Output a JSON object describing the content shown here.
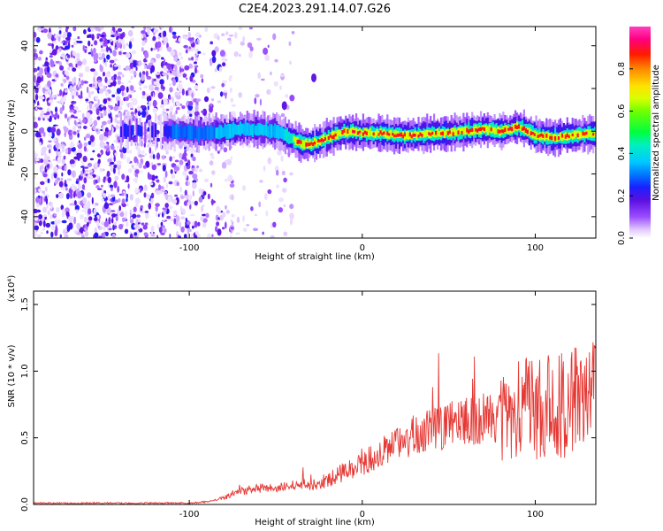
{
  "title": "C2E4.2023.291.14.07.G26",
  "chart_data": [
    {
      "type": "heatmap",
      "xlabel": "Height of straight line (km)",
      "ylabel": "Frequency (Hz)",
      "xlim": [
        -190,
        135
      ],
      "ylim": [
        -50,
        49
      ],
      "x_ticks": [
        -100,
        0,
        100
      ],
      "x_tick_labels": [
        "-100",
        "0",
        "100"
      ],
      "y_ticks": [
        -40,
        -20,
        0,
        20,
        40
      ],
      "y_tick_labels": [
        "-40",
        "-20",
        "0",
        "20",
        "40"
      ],
      "colorbar": {
        "label": "Normalized spectral amplitude",
        "range": [
          0,
          1
        ],
        "ticks": [
          0.0,
          0.2,
          0.4,
          0.6,
          0.8
        ],
        "tick_labels": [
          "0.0",
          "0.2",
          "0.4",
          "0.6",
          "0.8"
        ]
      },
      "ridge": {
        "x": [
          -135,
          -110,
          -95,
          -80,
          -65,
          -50,
          -40,
          -35,
          -30,
          -20,
          -10,
          0,
          10,
          20,
          30,
          40,
          50,
          60,
          70,
          80,
          90,
          100,
          110,
          120,
          135
        ],
        "y": [
          0,
          0,
          -1,
          0,
          1,
          0,
          -4,
          -6,
          -6,
          -3,
          0,
          -1,
          -1,
          -2,
          -2,
          -1,
          -1,
          0,
          1,
          0,
          2,
          -2,
          -3,
          -2,
          -1
        ]
      },
      "isolated_features": [
        {
          "x": -45,
          "y": 12
        },
        {
          "x": -28,
          "y": 25
        }
      ]
    },
    {
      "type": "line",
      "xlabel": "Height of straight line (km)",
      "ylabel": "SNR (10 * v/v)",
      "y_multiplier": "(x10⁴)",
      "xlim": [
        -190,
        135
      ],
      "ylim": [
        0,
        1.6
      ],
      "x_ticks": [
        -100,
        0,
        100
      ],
      "x_tick_labels": [
        "-100",
        "0",
        "100"
      ],
      "y_ticks": [
        0.0,
        0.5,
        1.0,
        1.5
      ],
      "y_tick_labels": [
        "0.0",
        "0.5",
        "1.0",
        "1.5"
      ],
      "color": "#e53935",
      "series": [
        {
          "x": [
            -190,
            -170,
            -150,
            -130,
            -110,
            -100,
            -90,
            -80,
            -70,
            -60,
            -50,
            -40,
            -30,
            -20,
            -10,
            0,
            10,
            20,
            30,
            40,
            50,
            60,
            70,
            80,
            90,
            100,
            110,
            120,
            130,
            135
          ],
          "y": [
            0.01,
            0.01,
            0.01,
            0.01,
            0.01,
            0.01,
            0.02,
            0.05,
            0.1,
            0.12,
            0.12,
            0.14,
            0.15,
            0.18,
            0.25,
            0.3,
            0.38,
            0.45,
            0.52,
            0.56,
            0.6,
            0.62,
            0.65,
            0.65,
            0.7,
            0.72,
            0.75,
            0.78,
            0.8,
            0.8
          ]
        }
      ]
    }
  ]
}
